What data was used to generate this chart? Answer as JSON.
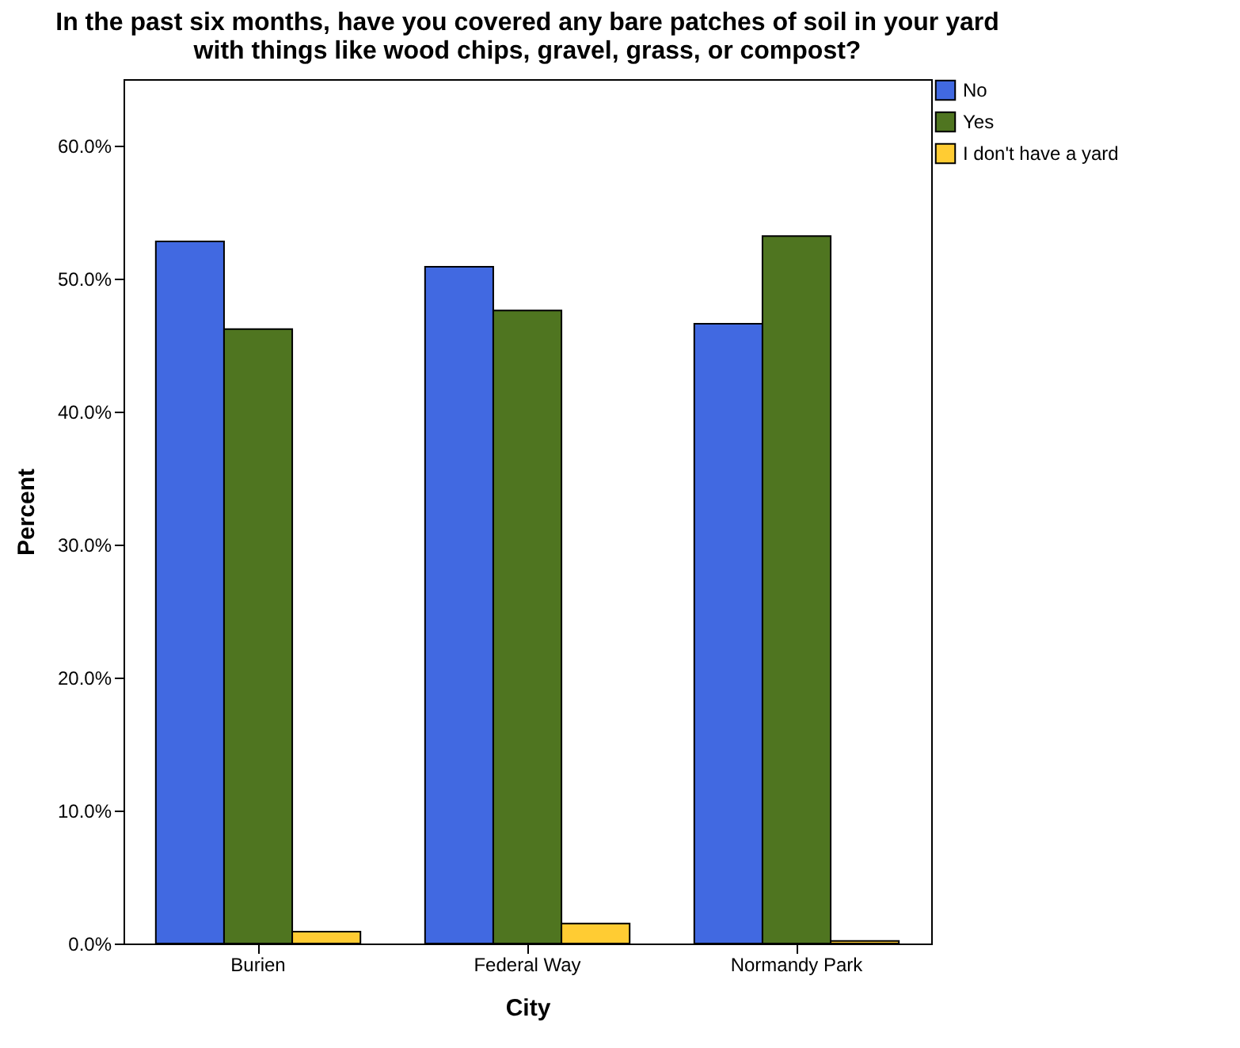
{
  "chart_data": {
    "type": "bar",
    "title": "In the past six months, have you covered any bare patches of soil in your yard\nwith things like wood chips, gravel, grass, or compost?",
    "xlabel": "City",
    "ylabel": "Percent",
    "categories": [
      "Burien",
      "Federal Way",
      "Normandy Park"
    ],
    "series": [
      {
        "name": "No",
        "color": "#4169e1",
        "values": [
          52.8,
          50.9,
          46.6
        ]
      },
      {
        "name": "Yes",
        "color": "#4f7520",
        "values": [
          46.2,
          47.6,
          53.2
        ]
      },
      {
        "name": "I don't have a yard",
        "color": "#ffcc33",
        "values": [
          0.9,
          1.5,
          0.2
        ]
      }
    ],
    "ylim": [
      0,
      65
    ],
    "yticks": [
      {
        "value": 0,
        "label": "0.0%"
      },
      {
        "value": 10,
        "label": "10.0%"
      },
      {
        "value": 20,
        "label": "20.0%"
      },
      {
        "value": 30,
        "label": "30.0%"
      },
      {
        "value": 40,
        "label": "40.0%"
      },
      {
        "value": 50,
        "label": "50.0%"
      },
      {
        "value": 60,
        "label": "60.0%"
      }
    ],
    "grid": false,
    "legend": "right"
  }
}
